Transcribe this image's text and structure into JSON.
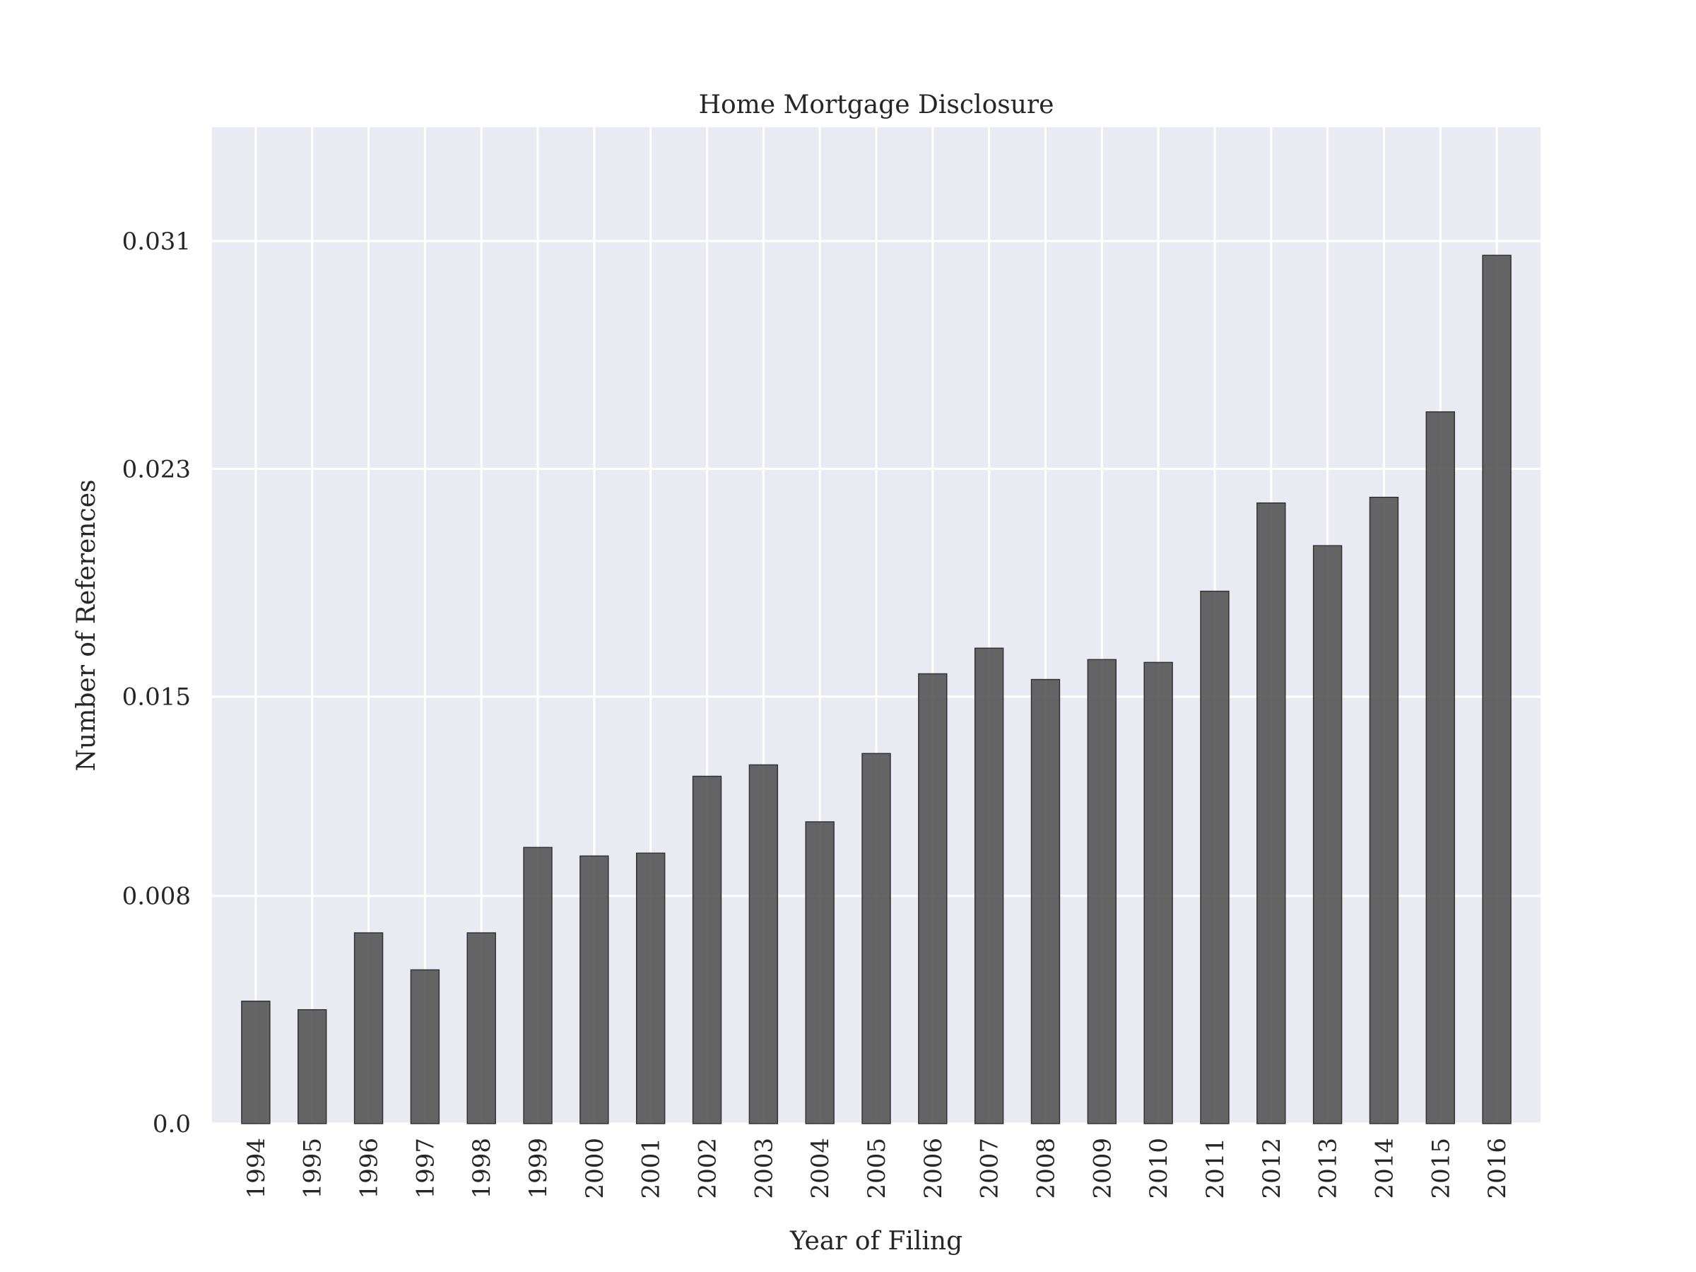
{
  "chart_data": {
    "type": "bar",
    "title": "Home Mortgage Disclosure",
    "xlabel": "Year of Filing",
    "ylabel": "Number of References",
    "categories": [
      "1994",
      "1995",
      "1996",
      "1997",
      "1998",
      "1999",
      "2000",
      "2001",
      "2002",
      "2003",
      "2004",
      "2005",
      "2006",
      "2007",
      "2008",
      "2009",
      "2010",
      "2011",
      "2012",
      "2013",
      "2014",
      "2015",
      "2016"
    ],
    "values": [
      0.0043,
      0.004,
      0.0067,
      0.0054,
      0.0067,
      0.0097,
      0.0094,
      0.0095,
      0.0122,
      0.0126,
      0.0106,
      0.013,
      0.0158,
      0.0167,
      0.0156,
      0.0163,
      0.0162,
      0.0187,
      0.0218,
      0.0203,
      0.022,
      0.025,
      0.0305
    ],
    "yticks": [
      0.0,
      0.008,
      0.015,
      0.023,
      0.031
    ],
    "ytick_labels": [
      "0.0",
      "0.008",
      "0.015",
      "0.023",
      "0.031"
    ],
    "ylim": [
      0,
      0.035
    ],
    "grid": true,
    "colors": {
      "bar": "#555555",
      "plot_background": "#eaeaf2",
      "grid": "#ffffff"
    }
  }
}
